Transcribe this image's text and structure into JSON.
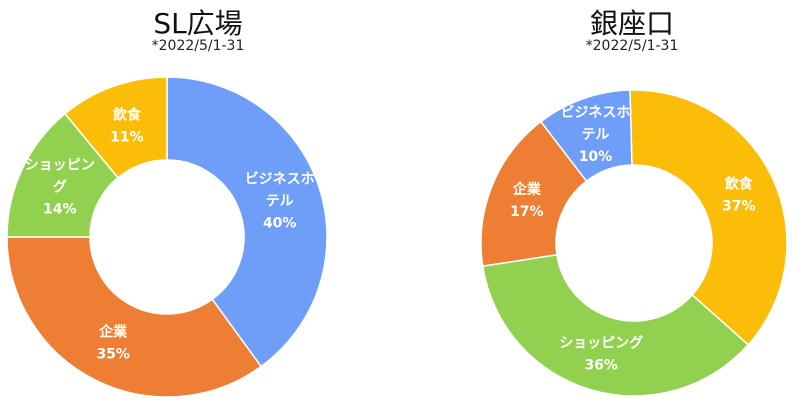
{
  "chart_data": [
    {
      "type": "pie",
      "title": "SL広場",
      "subtitle": "*2022/5/1-31",
      "donut": true,
      "slices": [
        {
          "label": [
            "ビジネスホ",
            "テル"
          ],
          "percent_label": "40%",
          "value": 40,
          "color": "#6f9ef8"
        },
        {
          "label": [
            "企業"
          ],
          "percent_label": "35%",
          "value": 35,
          "color": "#ee7e33"
        },
        {
          "label": [
            "ショッピン",
            "グ"
          ],
          "percent_label": "14%",
          "value": 14,
          "color": "#92d14f"
        },
        {
          "label": [
            "飲食"
          ],
          "percent_label": "11%",
          "value": 11,
          "color": "#fbbd08"
        }
      ]
    },
    {
      "type": "pie",
      "title": "銀座口",
      "subtitle": "*2022/5/1-31",
      "donut": true,
      "slices": [
        {
          "label": [
            "飲食"
          ],
          "percent_label": "37%",
          "value": 37,
          "color": "#fbbd08"
        },
        {
          "label": [
            "ショッピング"
          ],
          "percent_label": "36%",
          "value": 36,
          "color": "#92d14f"
        },
        {
          "label": [
            "企業"
          ],
          "percent_label": "17%",
          "value": 17,
          "color": "#ee7e33"
        },
        {
          "label": [
            "ビジネスホ",
            "テル"
          ],
          "percent_label": "10%",
          "value": 10,
          "color": "#6f9ef8"
        }
      ]
    }
  ]
}
